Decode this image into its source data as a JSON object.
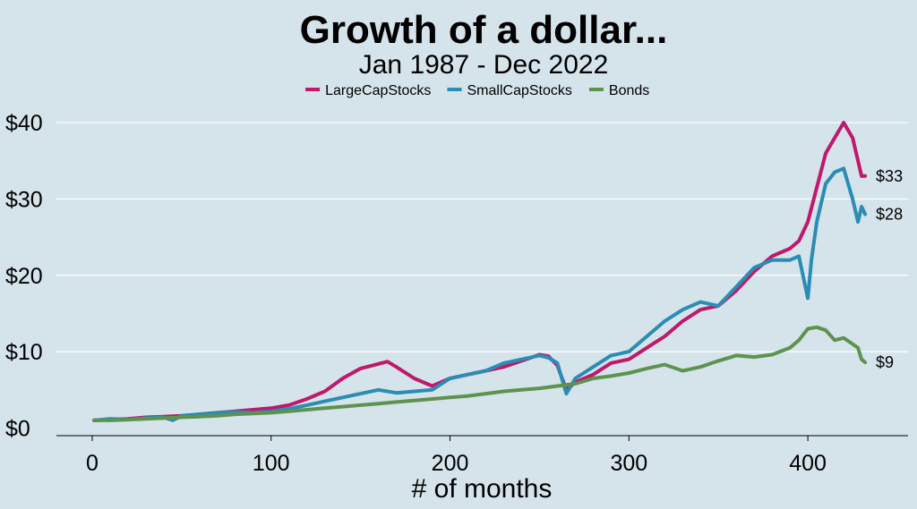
{
  "chart_data": {
    "type": "line",
    "title": "Growth of a dollar...",
    "subtitle": "Jan 1987 - Dec 2022",
    "xlabel": "# of months",
    "ylabel": "",
    "xlim": [
      -20,
      456
    ],
    "ylim": [
      -1,
      42
    ],
    "x_ticks": [
      0,
      100,
      200,
      300,
      400
    ],
    "x_tick_labels": [
      "0",
      "100",
      "200",
      "300",
      "400"
    ],
    "y_ticks": [
      0,
      10,
      20,
      30,
      40
    ],
    "y_tick_labels": [
      "$0",
      "$10",
      "$20",
      "$30",
      "$40"
    ],
    "grid": "horizontal",
    "legend_position": "top",
    "series": [
      {
        "name": "LargeCapStocks",
        "color": "#c0186a",
        "end_label": "$33",
        "x": [
          1,
          10,
          20,
          30,
          40,
          50,
          60,
          70,
          80,
          90,
          100,
          110,
          120,
          130,
          140,
          150,
          160,
          165,
          170,
          180,
          190,
          200,
          210,
          220,
          230,
          240,
          250,
          255,
          260,
          265,
          270,
          280,
          290,
          300,
          310,
          320,
          330,
          340,
          350,
          360,
          370,
          380,
          390,
          395,
          400,
          405,
          410,
          415,
          420,
          425,
          428,
          430,
          432
        ],
        "values": [
          1.0,
          1.1,
          1.2,
          1.4,
          1.5,
          1.6,
          1.8,
          2.0,
          2.2,
          2.4,
          2.6,
          3.0,
          3.8,
          4.8,
          6.5,
          7.8,
          8.4,
          8.7,
          8.0,
          6.5,
          5.5,
          6.5,
          7.0,
          7.5,
          8.0,
          8.8,
          9.6,
          9.4,
          8.2,
          5.0,
          6.0,
          7.0,
          8.5,
          9.0,
          10.5,
          12.0,
          14.0,
          15.5,
          16.0,
          18.0,
          20.5,
          22.5,
          23.5,
          24.5,
          27.0,
          31.5,
          36.0,
          38.0,
          40.0,
          38.0,
          35.0,
          33.0,
          33.0
        ]
      },
      {
        "name": "SmallCapStocks",
        "color": "#2b8cb4",
        "end_label": "$28",
        "x": [
          1,
          10,
          20,
          30,
          40,
          45,
          50,
          60,
          70,
          80,
          90,
          100,
          110,
          120,
          130,
          140,
          150,
          160,
          170,
          180,
          190,
          200,
          210,
          220,
          230,
          240,
          250,
          255,
          260,
          265,
          270,
          280,
          290,
          300,
          310,
          320,
          330,
          340,
          350,
          360,
          370,
          380,
          390,
          395,
          400,
          402,
          405,
          410,
          415,
          420,
          425,
          428,
          430,
          432
        ],
        "values": [
          1.0,
          1.2,
          1.1,
          1.3,
          1.4,
          1.0,
          1.6,
          1.8,
          2.0,
          2.1,
          2.0,
          2.2,
          2.5,
          3.0,
          3.5,
          4.0,
          4.5,
          5.0,
          4.6,
          4.8,
          5.0,
          6.5,
          7.0,
          7.5,
          8.5,
          9.0,
          9.5,
          9.2,
          8.5,
          4.5,
          6.5,
          8.0,
          9.5,
          10.0,
          12.0,
          14.0,
          15.5,
          16.5,
          16.0,
          18.5,
          21.0,
          22.0,
          22.0,
          22.5,
          17.0,
          22.0,
          27.0,
          32.0,
          33.5,
          34.0,
          30.0,
          27.0,
          29.0,
          28.0
        ]
      },
      {
        "name": "Bonds",
        "color": "#5e934f",
        "end_label": "$9",
        "x": [
          1,
          10,
          20,
          30,
          40,
          50,
          60,
          70,
          80,
          90,
          100,
          110,
          120,
          130,
          140,
          150,
          160,
          170,
          180,
          190,
          200,
          210,
          220,
          230,
          240,
          250,
          260,
          270,
          280,
          290,
          300,
          310,
          320,
          330,
          340,
          350,
          360,
          370,
          380,
          390,
          395,
          400,
          405,
          410,
          415,
          420,
          425,
          428,
          430,
          432
        ],
        "values": [
          1.0,
          1.0,
          1.1,
          1.2,
          1.3,
          1.4,
          1.5,
          1.6,
          1.8,
          1.9,
          2.0,
          2.2,
          2.4,
          2.6,
          2.8,
          3.0,
          3.2,
          3.4,
          3.6,
          3.8,
          4.0,
          4.2,
          4.5,
          4.8,
          5.0,
          5.2,
          5.5,
          5.8,
          6.5,
          6.8,
          7.2,
          7.8,
          8.3,
          7.5,
          8.0,
          8.8,
          9.5,
          9.3,
          9.6,
          10.5,
          11.5,
          13.0,
          13.2,
          12.8,
          11.5,
          11.8,
          11.0,
          10.5,
          9.0,
          8.6
        ]
      }
    ]
  }
}
